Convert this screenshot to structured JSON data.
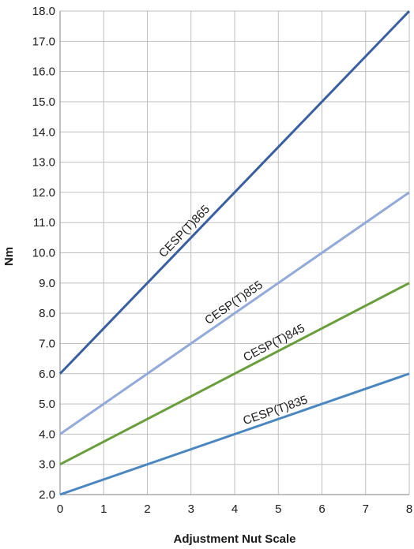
{
  "chart_data": {
    "type": "line",
    "xlabel": "Adjustment Nut Scale",
    "ylabel": "Nm",
    "xlim": [
      0,
      8
    ],
    "ylim": [
      2,
      18
    ],
    "x_ticks": [
      "0",
      "1",
      "2",
      "3",
      "4",
      "5",
      "6",
      "7",
      "8"
    ],
    "y_ticks": [
      "2.0",
      "3.0",
      "4.0",
      "5.0",
      "6.0",
      "7.0",
      "8.0",
      "9.0",
      "10.0",
      "11.0",
      "12.0",
      "13.0",
      "14.0",
      "15.0",
      "16.0",
      "17.0",
      "18.0"
    ],
    "grid": true,
    "series": [
      {
        "name": "CESP(T)865",
        "color": "#3a5fa0",
        "x": [
          0,
          8
        ],
        "values": [
          6.0,
          18.0
        ],
        "label_at": 3.0
      },
      {
        "name": "CESP(T)855",
        "color": "#93a9d9",
        "x": [
          0,
          8
        ],
        "values": [
          4.0,
          12.0
        ],
        "label_at": 4.1
      },
      {
        "name": "CESP(T)845",
        "color": "#6a9e3c",
        "x": [
          0,
          8
        ],
        "values": [
          3.0,
          9.0
        ],
        "label_at": 5.0
      },
      {
        "name": "CESP(T)835",
        "color": "#4a86c0",
        "x": [
          0,
          8
        ],
        "values": [
          2.0,
          6.0
        ],
        "label_at": 5.0
      }
    ]
  }
}
